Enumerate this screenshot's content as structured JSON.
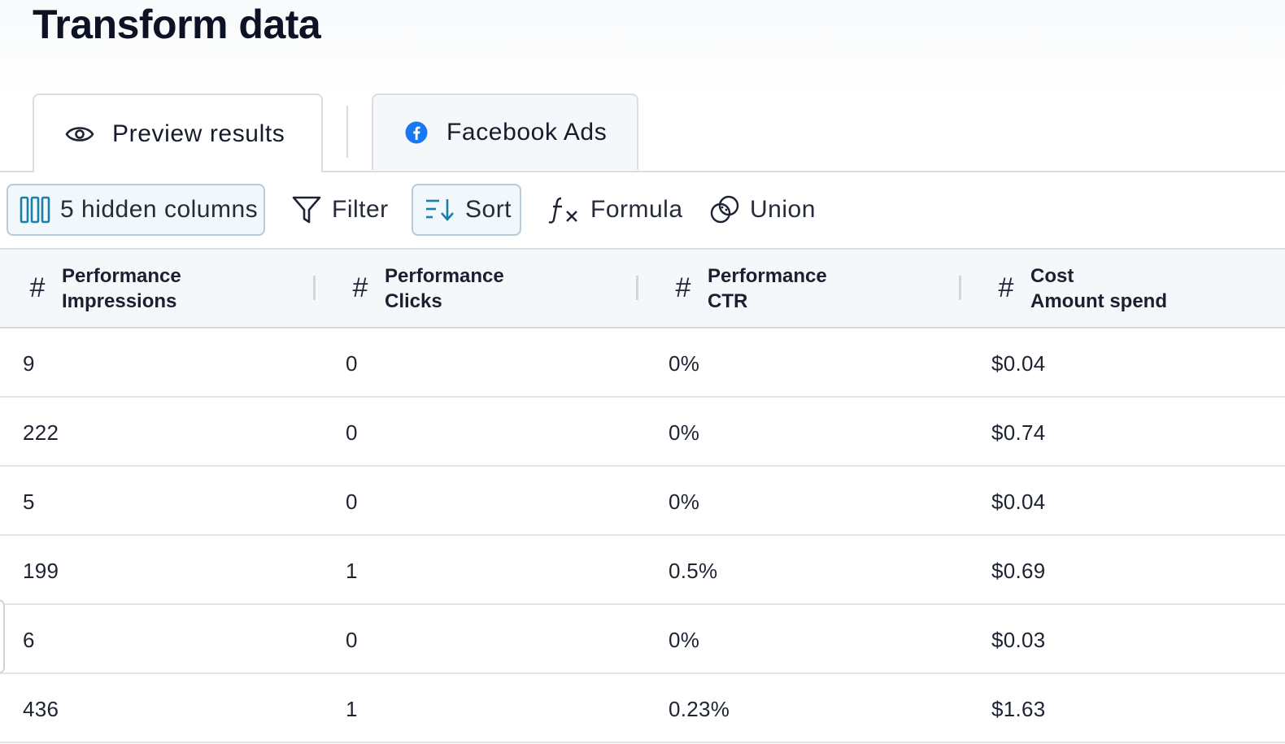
{
  "page": {
    "title": "Transform data"
  },
  "tabs": [
    {
      "label": "Preview results",
      "icon": "eye-icon",
      "active": true
    },
    {
      "label": "Facebook Ads",
      "icon": "facebook-icon",
      "active": false
    }
  ],
  "toolbar": {
    "hidden_columns": "5 hidden columns",
    "filter": "Filter",
    "sort": "Sort",
    "formula": "Formula",
    "union": "Union"
  },
  "table": {
    "columns": [
      {
        "type_symbol": "#",
        "line1": "Performance",
        "line2": "Impressions"
      },
      {
        "type_symbol": "#",
        "line1": "Performance",
        "line2": "Clicks"
      },
      {
        "type_symbol": "#",
        "line1": "Performance",
        "line2": "CTR"
      },
      {
        "type_symbol": "#",
        "line1": "Cost",
        "line2": "Amount spend"
      }
    ],
    "rows": [
      [
        "9",
        "0",
        "0%",
        "$0.04"
      ],
      [
        "222",
        "0",
        "0%",
        "$0.74"
      ],
      [
        "5",
        "0",
        "0%",
        "$0.04"
      ],
      [
        "199",
        "1",
        "0.5%",
        "$0.69"
      ],
      [
        "6",
        "0",
        "0%",
        "$0.03"
      ],
      [
        "436",
        "1",
        "0.23%",
        "$1.63"
      ]
    ]
  },
  "colors": {
    "accent": "#1b7fa8",
    "facebook": "#1877f2",
    "border": "#d9dee4"
  }
}
